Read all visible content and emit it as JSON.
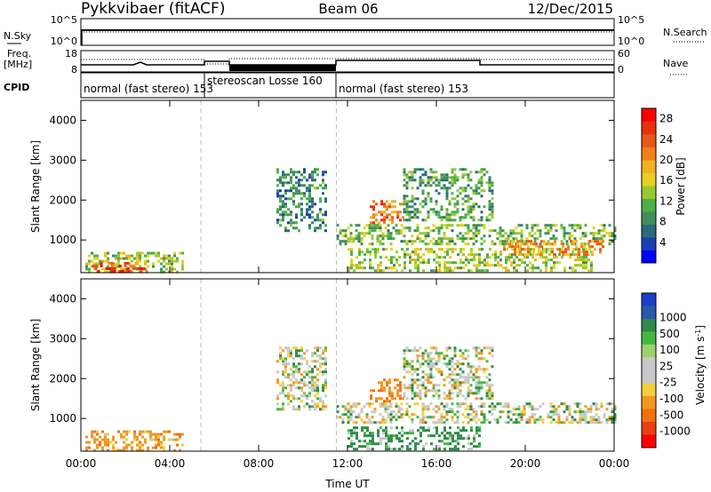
{
  "header": {
    "radar": "Pykkvibaer (fitACF)",
    "beam": "Beam 06",
    "date": "12/Dec/2015"
  },
  "top_panels": {
    "nsky_label": "N.Sky",
    "nsky_ticks": [
      "10^5",
      "10^0"
    ],
    "nsearch_label": "N.Search",
    "nsearch_ticks": [
      "10^5",
      "10^0"
    ],
    "freq_label_line1": "Freq.",
    "freq_label_line2": "[MHz]",
    "freq_ticks": [
      "18",
      "8"
    ],
    "nave_label": "Nave",
    "nave_ticks": [
      "60",
      "0"
    ],
    "cpid_label": "CPID",
    "cpid_segments": [
      {
        "text": "normal (fast stereo) 153",
        "start_hour": 0.0,
        "end_hour": 5.4
      },
      {
        "text": "stereoscan Losse 160",
        "start_hour": 5.4,
        "end_hour": 11.5
      },
      {
        "text": "normal (fast stereo) 153",
        "start_hour": 11.5,
        "end_hour": 24.0
      }
    ]
  },
  "chart_data": [
    {
      "type": "heatmap",
      "title": "",
      "ylabel": "Slant Range [km]",
      "xlabel": "",
      "x_ticks": [
        "00:00",
        "04:00",
        "08:00",
        "12:00",
        "16:00",
        "20:00",
        "00:00"
      ],
      "y_ticks": [
        "1000",
        "2000",
        "3000",
        "4000"
      ],
      "xlim": [
        0,
        24
      ],
      "ylim": [
        180,
        4500
      ],
      "colorbar": {
        "label": "Power [dB]",
        "ticks": [
          "4",
          "8",
          "12",
          "16",
          "20",
          "24",
          "28"
        ],
        "range": [
          0,
          30
        ],
        "colors": [
          "#0000ff",
          "#1a3fb0",
          "#2a6a7a",
          "#3f8f5a",
          "#4bb04a",
          "#9ac830",
          "#e8d020",
          "#f0b020",
          "#f08018",
          "#e85818",
          "#e83010",
          "#ff0000"
        ]
      },
      "dashed_lines_hours": [
        5.4,
        11.5
      ],
      "echo_regions": [
        {
          "hours": [
            0.2,
            4.6
          ],
          "range_km": [
            200,
            700
          ],
          "power_db": 14
        },
        {
          "hours": [
            0.5,
            3.0
          ],
          "range_km": [
            200,
            450
          ],
          "power_db": 24
        },
        {
          "hours": [
            8.8,
            11.0
          ],
          "range_km": [
            1200,
            2800
          ],
          "power_db": 8
        },
        {
          "hours": [
            11.5,
            24.0
          ],
          "range_km": [
            900,
            1400
          ],
          "power_db": 12
        },
        {
          "hours": [
            13.0,
            14.5
          ],
          "range_km": [
            1400,
            2000
          ],
          "power_db": 22
        },
        {
          "hours": [
            12.0,
            23.0
          ],
          "range_km": [
            250,
            800
          ],
          "power_db": 14
        },
        {
          "hours": [
            19.0,
            23.5
          ],
          "range_km": [
            600,
            1000
          ],
          "power_db": 20
        },
        {
          "hours": [
            14.5,
            18.5
          ],
          "range_km": [
            1500,
            2800
          ],
          "power_db": 10
        }
      ]
    },
    {
      "type": "heatmap",
      "title": "",
      "ylabel": "Slant Range [km]",
      "xlabel": "Time UT",
      "x_ticks": [
        "00:00",
        "04:00",
        "08:00",
        "12:00",
        "16:00",
        "20:00",
        "00:00"
      ],
      "y_ticks": [
        "1000",
        "2000",
        "3000",
        "4000"
      ],
      "xlim": [
        0,
        24
      ],
      "ylim": [
        180,
        4500
      ],
      "colorbar": {
        "label": "Velocity [m s",
        "label_sup": "-1",
        "label_close": "]",
        "ticks": [
          "1000",
          "500",
          "100",
          "25",
          "-25",
          "-100",
          "-500",
          "-1000"
        ],
        "colors": [
          "#1a3fc8",
          "#2a5aa8",
          "#2e8a48",
          "#44b844",
          "#9ed070",
          "#c8c8c8",
          "#c8c8c8",
          "#f0d040",
          "#f09820",
          "#f07010",
          "#e84010",
          "#ff0000"
        ]
      },
      "dashed_lines_hours": [
        5.4,
        11.5
      ],
      "echo_regions": [
        {
          "hours": [
            0.2,
            4.6
          ],
          "range_km": [
            200,
            700
          ],
          "velocity": -200
        },
        {
          "hours": [
            8.8,
            11.0
          ],
          "range_km": [
            1200,
            2800
          ],
          "velocity": 0
        },
        {
          "hours": [
            11.5,
            24.0
          ],
          "range_km": [
            900,
            1400
          ],
          "velocity": 0
        },
        {
          "hours": [
            13.0,
            14.5
          ],
          "range_km": [
            1400,
            2000
          ],
          "velocity": -300
        },
        {
          "hours": [
            12.0,
            18.0
          ],
          "range_km": [
            250,
            800
          ],
          "velocity": 150
        },
        {
          "hours": [
            14.5,
            18.5
          ],
          "range_km": [
            1500,
            2800
          ],
          "velocity": 0
        }
      ]
    }
  ]
}
